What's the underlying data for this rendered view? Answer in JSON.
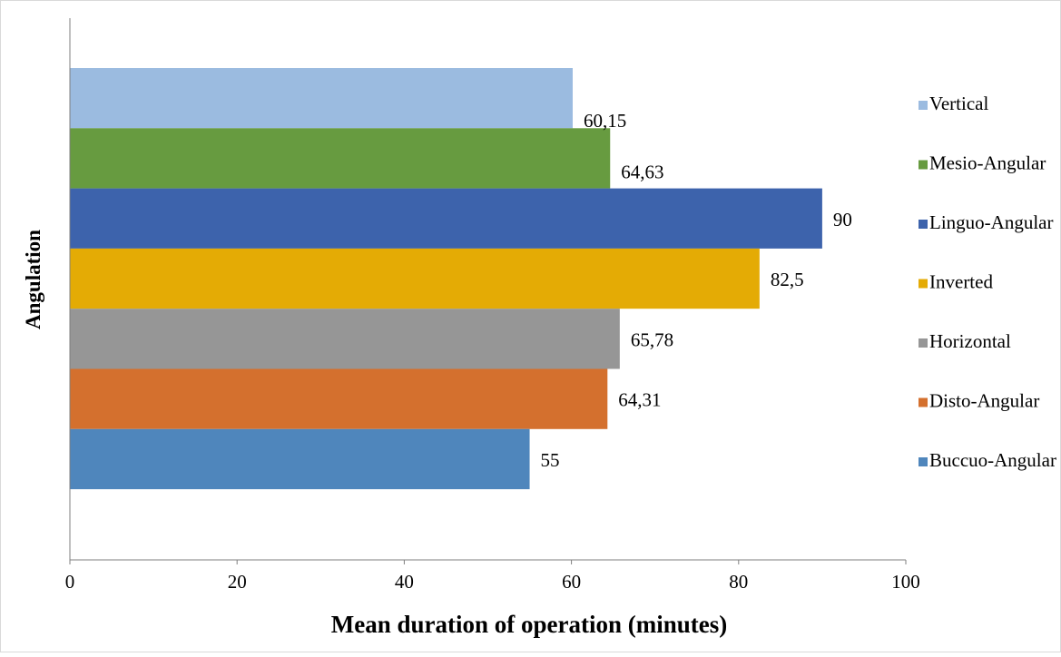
{
  "chart_data": {
    "type": "bar",
    "orientation": "horizontal",
    "title": "",
    "xlabel": "Mean duration of operation (minutes)",
    "ylabel": "Angulation",
    "xlim": [
      0,
      100
    ],
    "x_ticks": [
      "0",
      "20",
      "40",
      "60",
      "80",
      "100"
    ],
    "grid": false,
    "legend_position": "right",
    "series": [
      {
        "name": "Buccuo-Angular",
        "value": 55,
        "label": "55",
        "color": "#4f86bc"
      },
      {
        "name": "Disto-Angular",
        "value": 64.31,
        "label": "64,31",
        "color": "#d4702e"
      },
      {
        "name": "Horizontal",
        "value": 65.78,
        "label": "65,78",
        "color": "#969696"
      },
      {
        "name": "Inverted",
        "value": 82.5,
        "label": "82,5",
        "color": "#e4ab05"
      },
      {
        "name": "Linguo-Angular",
        "value": 90,
        "label": "90",
        "color": "#3d63ac"
      },
      {
        "name": "Mesio-Angular",
        "value": 64.63,
        "label": "64,63",
        "color": "#679b40"
      },
      {
        "name": "Vertical",
        "value": 60.15,
        "label": "60,15",
        "color": "#9bbbe0"
      }
    ]
  }
}
